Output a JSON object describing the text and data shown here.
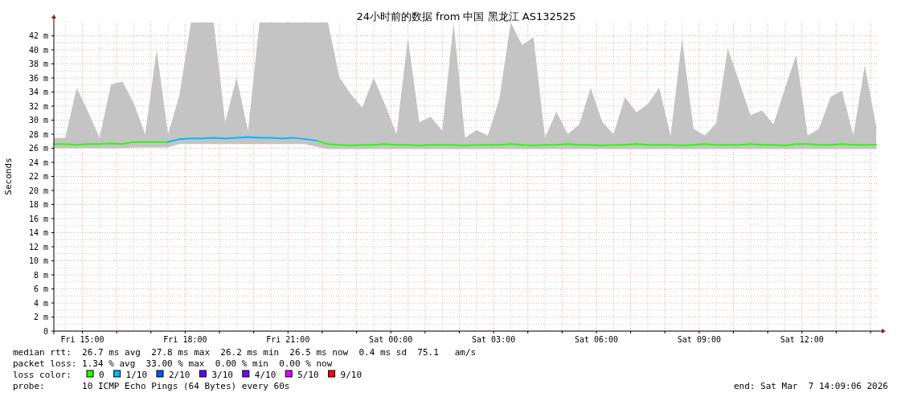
{
  "chart_data": {
    "type": "line",
    "title": "24小时前的数据 from 中国 黑龙江 AS132525",
    "ylabel": "Seconds",
    "legend_title": "loss color:",
    "legend": "bottom",
    "grid": true,
    "marker": "none",
    "x": [
      "2026-03-06T14:10",
      "2026-03-06T14:30",
      "2026-03-06T14:50",
      "2026-03-06T15:10",
      "2026-03-06T15:30",
      "2026-03-06T15:50",
      "2026-03-06T16:10",
      "2026-03-06T16:30",
      "2026-03-06T16:50",
      "2026-03-06T17:10",
      "2026-03-06T17:30",
      "2026-03-06T17:50",
      "2026-03-06T18:10",
      "2026-03-06T18:30",
      "2026-03-06T18:50",
      "2026-03-06T19:10",
      "2026-03-06T19:30",
      "2026-03-06T19:50",
      "2026-03-06T20:10",
      "2026-03-06T20:30",
      "2026-03-06T20:50",
      "2026-03-06T21:10",
      "2026-03-06T21:30",
      "2026-03-06T21:50",
      "2026-03-06T22:10",
      "2026-03-06T22:30",
      "2026-03-06T22:50",
      "2026-03-06T23:10",
      "2026-03-06T23:30",
      "2026-03-06T23:50",
      "2026-03-07T00:10",
      "2026-03-07T00:30",
      "2026-03-07T00:50",
      "2026-03-07T01:10",
      "2026-03-07T01:30",
      "2026-03-07T01:50",
      "2026-03-07T02:10",
      "2026-03-07T02:30",
      "2026-03-07T02:50",
      "2026-03-07T03:10",
      "2026-03-07T03:30",
      "2026-03-07T03:50",
      "2026-03-07T04:10",
      "2026-03-07T04:30",
      "2026-03-07T04:50",
      "2026-03-07T05:10",
      "2026-03-07T05:30",
      "2026-03-07T05:50",
      "2026-03-07T06:10",
      "2026-03-07T06:30",
      "2026-03-07T06:50",
      "2026-03-07T07:10",
      "2026-03-07T07:30",
      "2026-03-07T07:50",
      "2026-03-07T08:10",
      "2026-03-07T08:30",
      "2026-03-07T08:50",
      "2026-03-07T09:10",
      "2026-03-07T09:30",
      "2026-03-07T09:50",
      "2026-03-07T10:10",
      "2026-03-07T10:30",
      "2026-03-07T10:50",
      "2026-03-07T11:10",
      "2026-03-07T11:30",
      "2026-03-07T11:50",
      "2026-03-07T12:10",
      "2026-03-07T12:30",
      "2026-03-07T12:50",
      "2026-03-07T13:10",
      "2026-03-07T13:30",
      "2026-03-07T13:50",
      "2026-03-07T14:10"
    ],
    "series": [
      {
        "name": "0",
        "color": "#26ff00",
        "values": [
          26.6,
          26.6,
          26.5,
          26.6,
          26.6,
          26.7,
          26.6,
          26.9,
          26.9,
          26.9,
          26.9,
          null,
          null,
          null,
          null,
          null,
          null,
          null,
          null,
          null,
          null,
          null,
          null,
          27.1,
          26.6,
          26.5,
          26.4,
          26.5,
          26.5,
          26.6,
          26.5,
          26.5,
          26.4,
          26.5,
          26.5,
          26.5,
          26.4,
          26.5,
          26.5,
          26.5,
          26.6,
          26.5,
          26.4,
          26.5,
          26.5,
          26.6,
          26.5,
          26.5,
          26.4,
          26.5,
          26.5,
          26.6,
          26.5,
          26.5,
          26.5,
          26.4,
          26.5,
          26.6,
          26.5,
          26.5,
          26.5,
          26.6,
          26.5,
          26.5,
          26.4,
          26.6,
          26.6,
          26.5,
          26.5,
          26.6,
          26.5,
          26.5,
          26.5
        ],
        "lower": [
          26.0,
          26.0,
          26.0,
          26.0,
          26.0,
          26.0,
          26.0,
          26.1,
          26.1,
          26.1,
          26.1,
          26.6,
          26.6,
          26.6,
          26.6,
          26.6,
          26.6,
          26.6,
          26.6,
          26.6,
          26.6,
          26.6,
          26.6,
          26.2,
          25.9,
          25.9,
          25.9,
          25.9,
          25.9,
          25.9,
          25.9,
          25.9,
          25.9,
          25.9,
          25.9,
          25.9,
          25.9,
          25.9,
          25.9,
          25.9,
          25.9,
          25.9,
          25.9,
          25.9,
          25.9,
          25.9,
          25.9,
          25.9,
          25.9,
          25.9,
          25.9,
          25.9,
          25.9,
          25.9,
          25.9,
          25.9,
          25.9,
          25.9,
          25.9,
          25.9,
          25.9,
          25.9,
          25.9,
          25.9,
          25.9,
          25.9,
          25.9,
          25.9,
          25.9,
          25.9,
          25.9,
          25.9,
          25.9
        ],
        "upper": [
          27.5,
          27.5,
          34.6,
          31.2,
          27.5,
          35.1,
          35.5,
          32.4,
          28,
          40.0,
          28,
          33.6,
          43.9,
          43.9,
          43.9,
          29.7,
          36.1,
          28.5,
          43.9,
          43.9,
          43.9,
          43.9,
          43.9,
          43.9,
          43.9,
          36.1,
          33.7,
          31.8,
          36,
          32.2,
          28,
          41.7,
          29.7,
          30.5,
          28.5,
          43.9,
          27.5,
          28.6,
          27.8,
          33.0,
          43.9,
          40.7,
          41.8,
          27.5,
          31.2,
          28,
          29.4,
          34.6,
          29.8,
          28,
          33.3,
          31.1,
          32.3,
          34.6,
          27.8,
          41.6,
          28.8,
          27.8,
          29.6,
          40.2,
          35.5,
          30.7,
          31.4,
          29.4,
          34.5,
          39.3,
          27.8,
          28.8,
          33.3,
          34.2,
          27.8,
          37.8,
          29.1
        ]
      },
      {
        "name": "1/10",
        "color": "#00b8ff",
        "values": [
          null,
          null,
          null,
          null,
          null,
          null,
          null,
          null,
          null,
          null,
          26.9,
          27.3,
          27.4,
          27.4,
          27.5,
          27.4,
          27.5,
          27.6,
          27.5,
          27.5,
          27.4,
          27.5,
          27.3,
          27.1,
          null,
          null,
          null,
          null,
          null,
          null,
          null,
          null,
          null,
          null,
          null,
          null,
          null,
          null,
          null,
          null,
          null,
          null,
          null,
          null,
          null,
          null,
          null,
          null,
          null,
          null,
          null,
          null,
          null,
          null,
          null,
          null,
          null,
          null,
          null,
          null,
          null,
          null,
          null,
          null,
          null,
          null,
          null,
          null,
          null,
          null,
          null,
          null,
          null
        ]
      },
      {
        "name": "2/10",
        "color": "#0059ff",
        "values": [
          null,
          null,
          null,
          null,
          null,
          null,
          null,
          null,
          null,
          null,
          null,
          null,
          null,
          null,
          null,
          null,
          null,
          null,
          null,
          null,
          null,
          null,
          null,
          null,
          null,
          null,
          null,
          null,
          null,
          null,
          null,
          null,
          null,
          null,
          null,
          null,
          null,
          null,
          null,
          null,
          null,
          null,
          null,
          null,
          null,
          null,
          null,
          null,
          null,
          null,
          null,
          null,
          null,
          null,
          null,
          null,
          null,
          null,
          null,
          null,
          null,
          null,
          null,
          null,
          null,
          null,
          null,
          null,
          null,
          null,
          null,
          null,
          null
        ]
      },
      {
        "name": "3/10",
        "color": "#5e00ff",
        "values": [
          null,
          null,
          null,
          null,
          null,
          null,
          null,
          null,
          null,
          null,
          null,
          null,
          null,
          null,
          null,
          null,
          null,
          null,
          null,
          null,
          null,
          null,
          null,
          null,
          null,
          null,
          null,
          null,
          null,
          null,
          null,
          null,
          null,
          null,
          null,
          null,
          null,
          null,
          null,
          null,
          null,
          null,
          null,
          null,
          null,
          null,
          null,
          null,
          null,
          null,
          null,
          null,
          null,
          null,
          null,
          null,
          null,
          null,
          null,
          null,
          null,
          null,
          null,
          null,
          null,
          null,
          null,
          null,
          null,
          null,
          null,
          null,
          null
        ]
      },
      {
        "name": "4/10",
        "color": "#7e00ff",
        "values": [
          null,
          null,
          null,
          null,
          null,
          null,
          null,
          null,
          null,
          null,
          null,
          null,
          null,
          null,
          null,
          null,
          null,
          null,
          null,
          null,
          null,
          null,
          null,
          null,
          null,
          null,
          null,
          null,
          null,
          null,
          null,
          null,
          null,
          null,
          null,
          null,
          null,
          null,
          null,
          null,
          null,
          null,
          null,
          null,
          null,
          null,
          null,
          null,
          null,
          null,
          null,
          null,
          null,
          null,
          null,
          null,
          null,
          null,
          null,
          null,
          null,
          null,
          null,
          null,
          null,
          null,
          null,
          null,
          null,
          null,
          null,
          null,
          null
        ]
      },
      {
        "name": "5/10",
        "color": "#dd00ff",
        "values": [
          null,
          null,
          null,
          null,
          null,
          null,
          null,
          null,
          null,
          null,
          null,
          null,
          null,
          null,
          null,
          null,
          null,
          null,
          null,
          null,
          null,
          null,
          null,
          null,
          null,
          null,
          null,
          null,
          null,
          null,
          null,
          null,
          null,
          null,
          null,
          null,
          null,
          null,
          null,
          null,
          null,
          null,
          null,
          null,
          null,
          null,
          null,
          null,
          null,
          null,
          null,
          null,
          null,
          null,
          null,
          null,
          null,
          null,
          null,
          null,
          null,
          null,
          null,
          null,
          null,
          null,
          null,
          null,
          null,
          null,
          null,
          null,
          null
        ]
      },
      {
        "name": "9/10",
        "color": "#ff0000",
        "values": [
          null,
          null,
          null,
          null,
          null,
          null,
          null,
          null,
          null,
          null,
          null,
          null,
          null,
          null,
          null,
          null,
          null,
          null,
          null,
          null,
          null,
          null,
          null,
          null,
          null,
          null,
          null,
          null,
          null,
          null,
          null,
          null,
          null,
          null,
          null,
          null,
          null,
          null,
          null,
          null,
          null,
          null,
          null,
          null,
          null,
          null,
          null,
          null,
          null,
          null,
          null,
          null,
          null,
          null,
          null,
          null,
          null,
          null,
          null,
          null,
          null,
          null,
          null,
          null,
          null,
          null,
          null,
          null,
          null,
          null,
          null,
          null,
          null
        ]
      }
    ],
    "xlim": [
      "2026-03-06T14:10",
      "2026-03-07T14:14"
    ],
    "xticks": [
      {
        "value": "2026-03-06T15:00",
        "label": "Fri 15:00"
      },
      {
        "value": "2026-03-06T16:00",
        "label": null
      },
      {
        "value": "2026-03-06T17:00",
        "label": null
      },
      {
        "value": "2026-03-06T18:00",
        "label": "Fri 18:00"
      },
      {
        "value": "2026-03-06T19:00",
        "label": null
      },
      {
        "value": "2026-03-06T20:00",
        "label": null
      },
      {
        "value": "2026-03-06T21:00",
        "label": "Fri 21:00"
      },
      {
        "value": "2026-03-06T22:00",
        "label": null
      },
      {
        "value": "2026-03-06T23:00",
        "label": null
      },
      {
        "value": "2026-03-07T00:00",
        "label": "Sat 00:00"
      },
      {
        "value": "2026-03-07T01:00",
        "label": null
      },
      {
        "value": "2026-03-07T02:00",
        "label": null
      },
      {
        "value": "2026-03-07T03:00",
        "label": "Sat 03:00"
      },
      {
        "value": "2026-03-07T04:00",
        "label": null
      },
      {
        "value": "2026-03-07T05:00",
        "label": null
      },
      {
        "value": "2026-03-07T06:00",
        "label": "Sat 06:00"
      },
      {
        "value": "2026-03-07T07:00",
        "label": null
      },
      {
        "value": "2026-03-07T08:00",
        "label": null
      },
      {
        "value": "2026-03-07T09:00",
        "label": "Sat 09:00"
      },
      {
        "value": "2026-03-07T10:00",
        "label": null
      },
      {
        "value": "2026-03-07T11:00",
        "label": null
      },
      {
        "value": "2026-03-07T12:00",
        "label": "Sat 12:00"
      },
      {
        "value": "2026-03-07T13:00",
        "label": null
      },
      {
        "value": "2026-03-07T14:00",
        "label": null
      }
    ],
    "ylim": [
      0,
      44
    ],
    "yticks": [
      0,
      {
        "value": 2,
        "label": "2 m"
      },
      {
        "value": 4,
        "label": "4 m"
      },
      {
        "value": 6,
        "label": "6 m"
      },
      {
        "value": 8,
        "label": "8 m"
      },
      {
        "value": 10,
        "label": "10 m"
      },
      {
        "value": 12,
        "label": "12 m"
      },
      {
        "value": 14,
        "label": "14 m"
      },
      {
        "value": 16,
        "label": "16 m"
      },
      {
        "value": 18,
        "label": "18 m"
      },
      {
        "value": 20,
        "label": "20 m"
      },
      {
        "value": 22,
        "label": "22 m"
      },
      {
        "value": 24,
        "label": "24 m"
      },
      {
        "value": 26,
        "label": "26 m"
      },
      {
        "value": 28,
        "label": "28 m"
      },
      {
        "value": 30,
        "label": "30 m"
      },
      {
        "value": 32,
        "label": "32 m"
      },
      {
        "value": 34,
        "label": "34 m"
      },
      {
        "value": 36,
        "label": "36 m"
      },
      {
        "value": 38,
        "label": "38 m"
      },
      {
        "value": 40,
        "label": "40 m"
      },
      {
        "value": 42,
        "label": "42 m"
      }
    ],
    "annotations": [
      "median rtt:  26.7 ms avg  27.8 ms max  26.2 ms min  26.5 ms now  0.4 ms sd  75.1   am/s",
      "packet loss: 1.34 % avg  33.00 % max  0.00 % min  0.00 % now",
      "probe:       10 ICMP Echo Pings (64 Bytes) every 60s",
      "end: Sat Mar  7 14:09:06 2026"
    ]
  }
}
